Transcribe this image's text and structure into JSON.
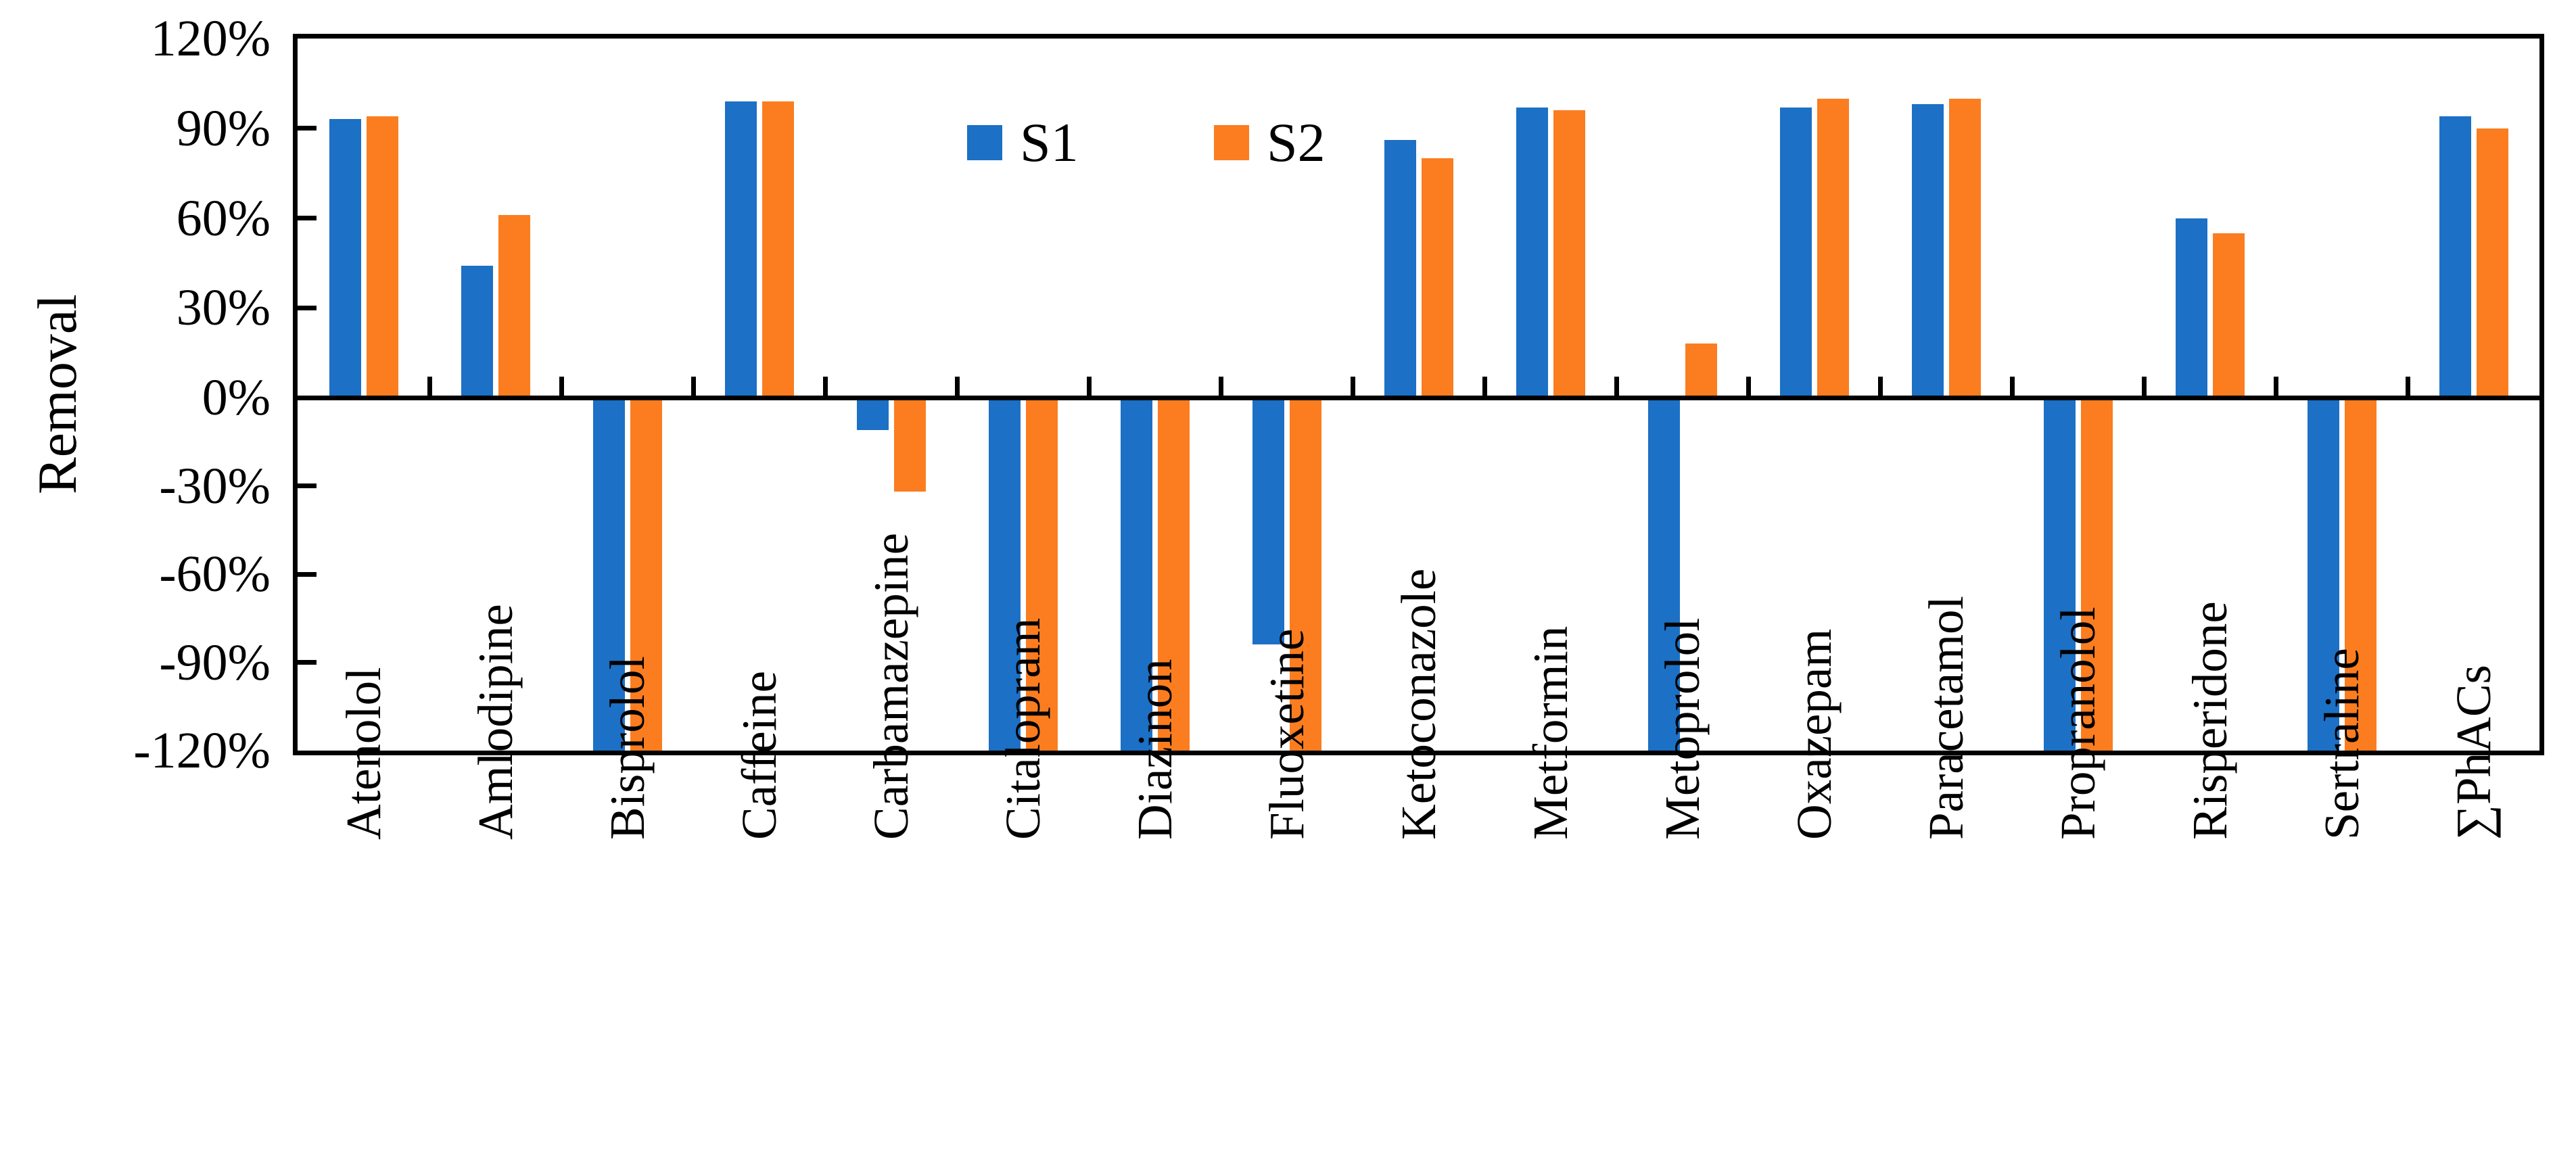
{
  "figure": {
    "background": "#ffffff",
    "axis_color": "#000000"
  },
  "chart_data": {
    "type": "bar",
    "title": "",
    "xlabel": "",
    "ylabel": "Removal",
    "ylim": [
      -120,
      120
    ],
    "ytick_step": 30,
    "y_tick_labels": [
      "120%",
      "90%",
      "60%",
      "30%",
      "0%",
      "-30%",
      "-60%",
      "-90%",
      "-120%"
    ],
    "grid": false,
    "legend_position": "top-inside",
    "bars_clipped_at_ymin_note": "values of -120 with clipped=true extend to/beyond the -120% axis minimum",
    "categories": [
      "Atenolol",
      "Amlodipine",
      "Bisprolol",
      "Caffeine",
      "Carbamazepine",
      "Citalopram",
      "Diazinon",
      "Fluoxetine",
      "Ketoconazole",
      "Metformin",
      "Metoprolol",
      "Oxazepam",
      "Paracetamol",
      "Propranolol",
      "Risperidone",
      "Sertraline",
      "∑PhACs"
    ],
    "series": [
      {
        "name": "S1",
        "color": "#1C70C5",
        "values": [
          93,
          44,
          -120,
          99,
          -11,
          -120,
          -120,
          -84,
          86,
          97,
          -120,
          97,
          98,
          -120,
          60,
          -120,
          94
        ],
        "clipped": [
          false,
          false,
          true,
          false,
          false,
          true,
          true,
          false,
          false,
          false,
          true,
          false,
          false,
          true,
          false,
          true,
          false
        ]
      },
      {
        "name": "S2",
        "color": "#FB7D20",
        "values": [
          94,
          61,
          -120,
          99,
          -32,
          -120,
          -120,
          -120,
          80,
          96,
          18,
          100,
          100,
          -120,
          55,
          -120,
          90
        ],
        "clipped": [
          false,
          false,
          true,
          false,
          false,
          true,
          true,
          true,
          false,
          false,
          false,
          false,
          false,
          true,
          false,
          true,
          false
        ]
      }
    ]
  }
}
